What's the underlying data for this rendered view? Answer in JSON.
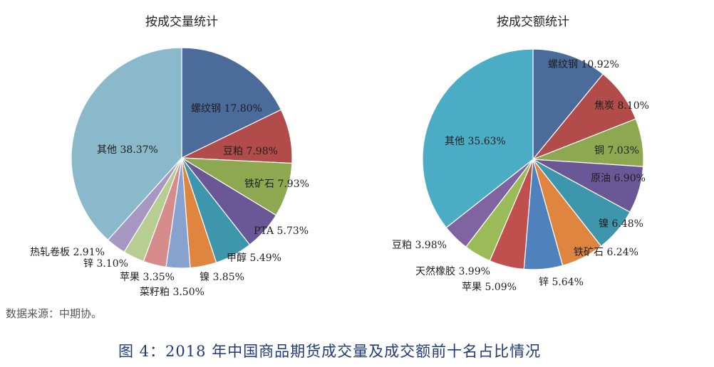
{
  "chart_data": [
    {
      "type": "pie",
      "title": "按成交量统计",
      "start": "top",
      "direction": "clockwise",
      "slices": [
        {
          "label": "螺纹钢 17.80%",
          "value": 17.8,
          "color": "#4b6b9b"
        },
        {
          "label": "豆粕 7.98%",
          "value": 7.98,
          "color": "#b24c4a"
        },
        {
          "label": "铁矿石 7.93%",
          "value": 7.93,
          "color": "#8ea852"
        },
        {
          "label": "PTA 5.73%",
          "value": 5.73,
          "color": "#6a5796"
        },
        {
          "label": "甲醇 5.49%",
          "value": 5.49,
          "color": "#3d96ab"
        },
        {
          "label": "镍 3.85%",
          "value": 3.85,
          "color": "#df853f"
        },
        {
          "label": "菜籽粕 3.50%",
          "value": 3.5,
          "color": "#87a2cf"
        },
        {
          "label": "苹果 3.35%",
          "value": 3.35,
          "color": "#d58c8b"
        },
        {
          "label": "锌 3.10%",
          "value": 3.1,
          "color": "#b8cd92"
        },
        {
          "label": "热轧卷板 2.91%",
          "value": 2.91,
          "color": "#a698c2"
        },
        {
          "label": "其他 38.37%",
          "value": 38.37,
          "color": "#8bb9cc"
        }
      ]
    },
    {
      "type": "pie",
      "title": "按成交额统计",
      "start": "top",
      "direction": "clockwise",
      "slices": [
        {
          "label": "螺纹钢 10.92%",
          "value": 10.92,
          "color": "#4b6b9b"
        },
        {
          "label": "焦炭 8.10%",
          "value": 8.1,
          "color": "#b24c4a"
        },
        {
          "label": "铜 7.03%",
          "value": 7.03,
          "color": "#8ea852"
        },
        {
          "label": "原油 6.90%",
          "value": 6.9,
          "color": "#6a5796"
        },
        {
          "label": "镍 6.48%",
          "value": 6.48,
          "color": "#3d96ab"
        },
        {
          "label": "铁矿石 6.24%",
          "value": 6.24,
          "color": "#df853f"
        },
        {
          "label": "锌 5.64%",
          "value": 5.64,
          "color": "#4f82bd"
        },
        {
          "label": "苹果 5.09%",
          "value": 5.09,
          "color": "#c0504d"
        },
        {
          "label": "天然橡胶 3.99%",
          "value": 3.99,
          "color": "#9bbb59"
        },
        {
          "label": "豆粕 3.98%",
          "value": 3.98,
          "color": "#8064a2"
        },
        {
          "label": "其他 35.63%",
          "value": 35.63,
          "color": "#4bacc6"
        }
      ]
    }
  ],
  "source": "数据来源：中期协。",
  "figure_title": "图 4：2018 年中国商品期货成交量及成交额前十名占比情况"
}
